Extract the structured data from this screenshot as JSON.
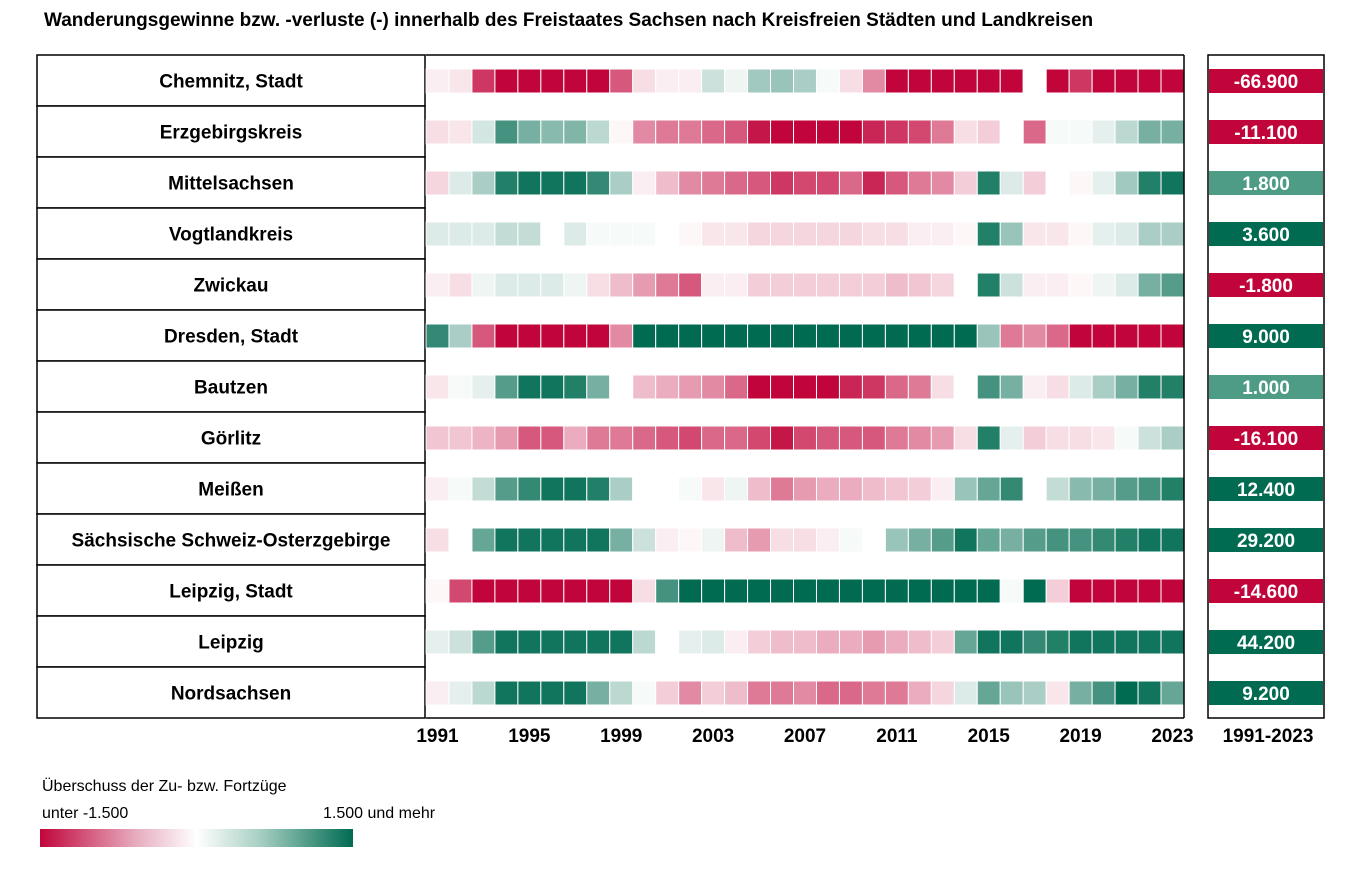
{
  "chart_data": {
    "type": "heatmap",
    "title": "Wanderungsgewinne bzw. -verluste (-) innerhalb des Freistaates Sachsen nach Kreisfreien Städten und Landkreisen",
    "years": [
      1991,
      1992,
      1993,
      1994,
      1995,
      1996,
      1997,
      1998,
      1999,
      2000,
      2001,
      2002,
      2003,
      2004,
      2005,
      2006,
      2007,
      2008,
      2009,
      2010,
      2011,
      2012,
      2013,
      2014,
      2015,
      2016,
      2017,
      2018,
      2019,
      2020,
      2021,
      2022,
      2023
    ],
    "x_tick_labels": [
      "1991",
      "1995",
      "1999",
      "2003",
      "2007",
      "2011",
      "2015",
      "2019",
      "2023"
    ],
    "total_column_label": "1991-2023",
    "color_scale": {
      "min": -1500,
      "max": 1500,
      "low_color": "#c1053b",
      "mid_color": "#ffffff",
      "high_color": "#006b51"
    },
    "rows": [
      {
        "name": "Chemnitz, Stadt",
        "total": -66900,
        "total_label": "-66.900",
        "values": [
          -100,
          -150,
          -1200,
          -1600,
          -1700,
          -1700,
          -1700,
          -1700,
          -1000,
          -200,
          -100,
          -100,
          300,
          100,
          550,
          600,
          500,
          50,
          -200,
          -700,
          -1500,
          -1600,
          -1600,
          -1600,
          -1600,
          -1600,
          0,
          -1600,
          -1200,
          -1600,
          -1600,
          -1600,
          -1600
        ]
      },
      {
        "name": "Erzgebirgskreis",
        "total": -11100,
        "total_label": "-11.100",
        "values": [
          -200,
          -150,
          250,
          1100,
          800,
          700,
          750,
          400,
          -50,
          -700,
          -800,
          -800,
          -900,
          -1000,
          -1400,
          -1600,
          -1600,
          -1600,
          -1600,
          -1300,
          -1200,
          -1100,
          -800,
          -200,
          -300,
          0,
          -900,
          50,
          50,
          150,
          400,
          800,
          800
        ]
      },
      {
        "name": "Mittelsachsen",
        "total": 1800,
        "total_label": "1.800",
        "values": [
          -250,
          200,
          500,
          1300,
          1400,
          1400,
          1400,
          1200,
          500,
          -100,
          -400,
          -700,
          -800,
          -900,
          -1000,
          -1200,
          -1100,
          -1100,
          -900,
          -1300,
          -1000,
          -800,
          -700,
          -300,
          1300,
          200,
          -300,
          0,
          -50,
          150,
          550,
          1300,
          1400
        ]
      },
      {
        "name": "Vogtlandkreis",
        "total": 3600,
        "total_label": "3.600",
        "values": [
          200,
          200,
          200,
          350,
          350,
          0,
          200,
          50,
          50,
          50,
          0,
          -50,
          -150,
          -150,
          -250,
          -250,
          -250,
          -250,
          -250,
          -200,
          -200,
          -100,
          -100,
          -50,
          1300,
          600,
          -150,
          -150,
          -50,
          150,
          200,
          500,
          500
        ]
      },
      {
        "name": "Zwickau",
        "total": -1800,
        "total_label": "-1.800",
        "values": [
          -100,
          -200,
          100,
          200,
          200,
          200,
          100,
          -200,
          -400,
          -600,
          -800,
          -1000,
          -100,
          -100,
          -300,
          -300,
          -300,
          -300,
          -300,
          -300,
          -400,
          -350,
          -250,
          0,
          1300,
          300,
          -100,
          -100,
          -50,
          100,
          200,
          800,
          1000
        ]
      },
      {
        "name": "Dresden, Stadt",
        "total": 9000,
        "total_label": "9.000",
        "values": [
          1200,
          500,
          -1000,
          -1600,
          -1600,
          -1600,
          -1600,
          -1600,
          -700,
          1600,
          1600,
          1600,
          1600,
          1600,
          1600,
          1600,
          1600,
          1600,
          1600,
          1600,
          1600,
          1600,
          1600,
          1600,
          600,
          -800,
          -700,
          -900,
          -1600,
          -1600,
          -1600,
          -1600,
          -1600
        ]
      },
      {
        "name": "Bautzen",
        "total": 1000,
        "total_label": "1.000",
        "values": [
          -150,
          50,
          150,
          1000,
          1400,
          1400,
          1300,
          800,
          0,
          -400,
          -500,
          -600,
          -700,
          -900,
          -1500,
          -1600,
          -1500,
          -1500,
          -1300,
          -1200,
          -900,
          -800,
          -200,
          0,
          1100,
          800,
          -100,
          -200,
          200,
          500,
          800,
          1300,
          1300
        ]
      },
      {
        "name": "Görlitz",
        "total": -16100,
        "total_label": "-16.100",
        "values": [
          -350,
          -350,
          -450,
          -600,
          -1000,
          -1000,
          -500,
          -800,
          -800,
          -900,
          -1000,
          -1100,
          -900,
          -900,
          -1100,
          -1400,
          -1100,
          -1000,
          -1000,
          -1000,
          -800,
          -700,
          -600,
          -200,
          1300,
          150,
          -300,
          -200,
          -200,
          -150,
          50,
          300,
          500
        ]
      },
      {
        "name": "Meißen",
        "total": 12400,
        "total_label": "12.400",
        "values": [
          -100,
          50,
          350,
          1000,
          1200,
          1400,
          1400,
          1300,
          500,
          0,
          0,
          50,
          -150,
          100,
          -400,
          -800,
          -600,
          -500,
          -500,
          -400,
          -350,
          -300,
          -100,
          600,
          900,
          1200,
          0,
          350,
          700,
          800,
          1000,
          1100,
          1300
        ]
      },
      {
        "name": "Sächsische Schweiz-Osterzgebirge",
        "total": 29200,
        "total_label": "29.200",
        "values": [
          -200,
          0,
          900,
          1400,
          1400,
          1400,
          1400,
          1400,
          800,
          300,
          -100,
          -50,
          100,
          -400,
          -600,
          -200,
          -200,
          -100,
          50,
          0,
          600,
          800,
          1000,
          1400,
          900,
          800,
          1000,
          1100,
          1100,
          1200,
          1300,
          1400,
          1400
        ]
      },
      {
        "name": "Leipzig, Stadt",
        "total": -14600,
        "total_label": "-14.600",
        "values": [
          -50,
          -1100,
          -1600,
          -1600,
          -1600,
          -1600,
          -1600,
          -1600,
          -1600,
          -200,
          1100,
          1600,
          1600,
          1600,
          1600,
          1600,
          1600,
          1600,
          1600,
          1600,
          1600,
          1600,
          1600,
          1600,
          1600,
          50,
          1600,
          -300,
          -1600,
          -1600,
          -1600,
          -1600,
          -1600
        ]
      },
      {
        "name": "Leipzig",
        "total": 44200,
        "total_label": "44.200",
        "values": [
          150,
          300,
          1000,
          1400,
          1400,
          1400,
          1400,
          1400,
          1400,
          400,
          0,
          150,
          200,
          -100,
          -300,
          -400,
          -400,
          -500,
          -500,
          -600,
          -500,
          -400,
          -300,
          900,
          1400,
          1400,
          1200,
          1300,
          1400,
          1400,
          1400,
          1400,
          1400
        ]
      },
      {
        "name": "Nordsachsen",
        "total": 9200,
        "total_label": "9.200",
        "values": [
          -100,
          150,
          400,
          1400,
          1400,
          1400,
          1400,
          800,
          400,
          50,
          -300,
          -700,
          -300,
          -400,
          -800,
          -800,
          -700,
          -900,
          -900,
          -800,
          -800,
          -500,
          -250,
          200,
          900,
          600,
          500,
          -150,
          800,
          1100,
          1500,
          1400,
          900
        ]
      }
    ]
  },
  "legend": {
    "title": "Überschuss der Zu- bzw. Fortzüge",
    "low_label": "unter -1.500",
    "high_label": "1.500 und mehr"
  }
}
